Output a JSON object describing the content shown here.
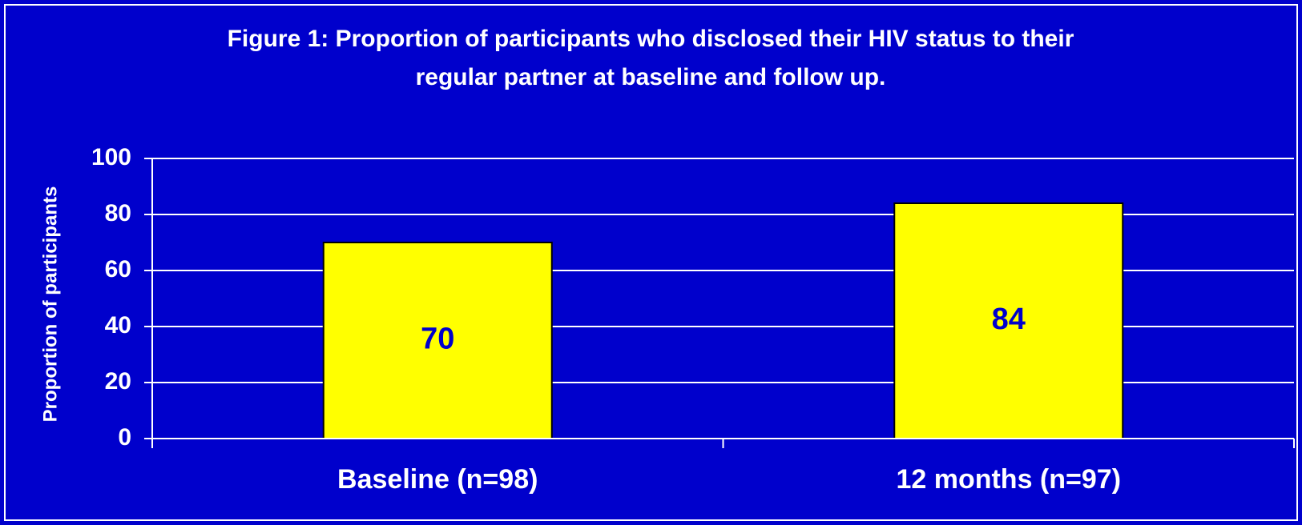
{
  "chart_data": {
    "type": "bar",
    "title": [
      "Figure 1: Proportion of participants who disclosed their HIV status to their",
      "regular partner at baseline and follow up."
    ],
    "y_label": "Proportion of participants",
    "categories": [
      "Baseline (n=98)",
      "12 months (n=97)"
    ],
    "values": [
      70,
      84
    ],
    "color": "#ffff00",
    "ylim": [
      0,
      100
    ],
    "yticks": [
      0,
      20,
      40,
      60,
      80,
      100
    ],
    "grid": true
  }
}
